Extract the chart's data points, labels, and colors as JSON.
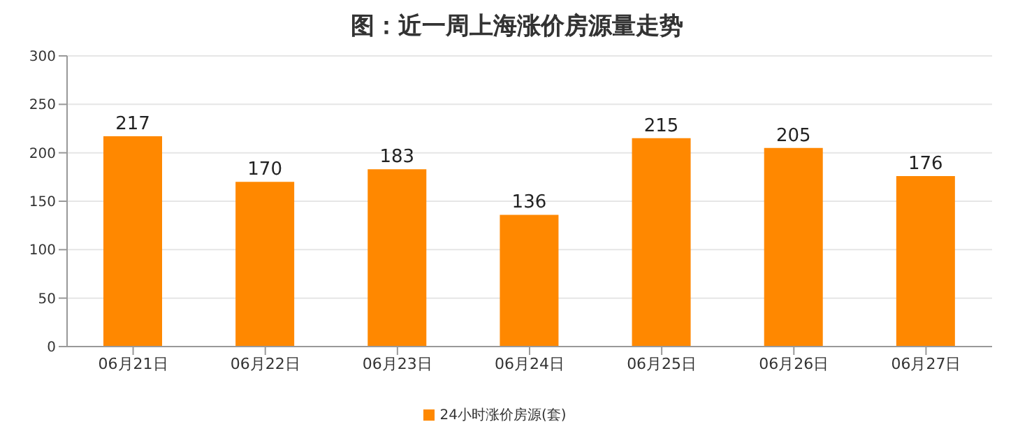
{
  "chart_data": {
    "type": "bar",
    "title": "图：近一周上海涨价房源量走势",
    "categories": [
      "06月21日",
      "06月22日",
      "06月23日",
      "06月24日",
      "06月25日",
      "06月26日",
      "06月27日"
    ],
    "series": [
      {
        "name": "24小时涨价房源(套)",
        "color": "#ff8800",
        "values": [
          217,
          170,
          183,
          136,
          215,
          205,
          176
        ]
      }
    ],
    "ylim": [
      0,
      300
    ],
    "yticks": [
      0,
      50,
      100,
      150,
      200,
      250,
      300
    ],
    "grid": "y",
    "legend": "bottom",
    "data_labels": true
  }
}
